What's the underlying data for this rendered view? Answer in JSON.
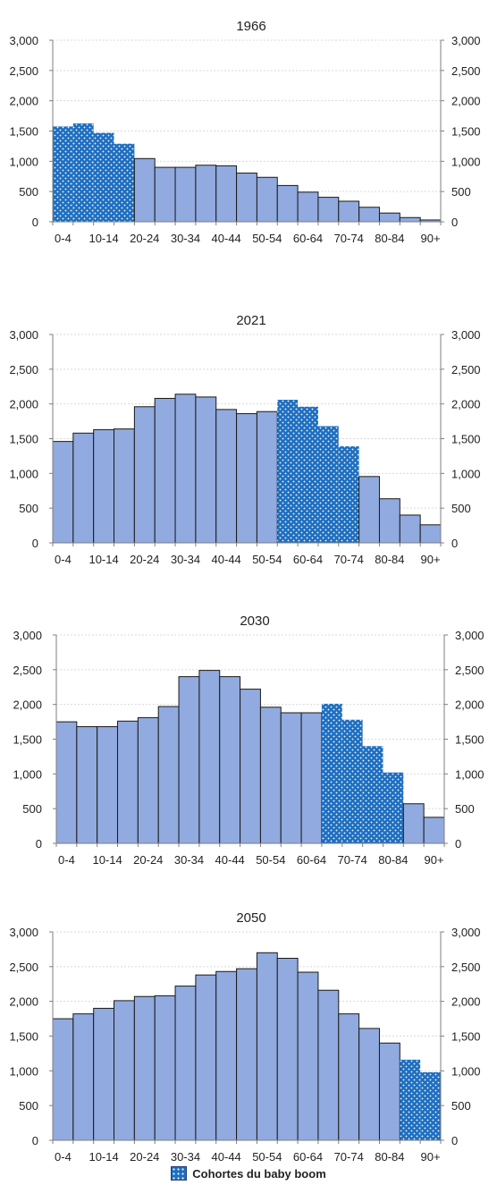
{
  "chart_data": [
    {
      "type": "bar",
      "title": "1966",
      "categories": [
        "0-4",
        "5-9",
        "10-14",
        "15-19",
        "20-24",
        "25-29",
        "30-34",
        "35-39",
        "40-44",
        "45-49",
        "50-54",
        "55-59",
        "60-64",
        "65-69",
        "70-74",
        "75-79",
        "80-84",
        "85-89",
        "90+"
      ],
      "values": [
        1575,
        1625,
        1470,
        1290,
        1045,
        900,
        900,
        935,
        925,
        805,
        735,
        600,
        490,
        405,
        340,
        240,
        145,
        70,
        30
      ],
      "baby_boom": [
        true,
        true,
        true,
        true,
        false,
        false,
        false,
        false,
        false,
        false,
        false,
        false,
        false,
        false,
        false,
        false,
        false,
        false,
        false
      ],
      "visible_x_labels": [
        "0-4",
        "10-14",
        "20-24",
        "30-34",
        "40-44",
        "50-54",
        "60-64",
        "70-74",
        "80-84",
        "90+"
      ],
      "y_ticks": [
        "0",
        "500",
        "1,000",
        "1,500",
        "2,000",
        "2,500",
        "3,000"
      ],
      "ylim": [
        0,
        3000
      ],
      "grid": true
    },
    {
      "type": "bar",
      "title": "2021",
      "categories": [
        "0-4",
        "5-9",
        "10-14",
        "15-19",
        "20-24",
        "25-29",
        "30-34",
        "35-39",
        "40-44",
        "45-49",
        "50-54",
        "55-59",
        "60-64",
        "65-69",
        "70-74",
        "75-79",
        "80-84",
        "85-89",
        "90+"
      ],
      "values": [
        1460,
        1580,
        1630,
        1640,
        1960,
        2080,
        2140,
        2100,
        1920,
        1860,
        1890,
        2060,
        1960,
        1680,
        1390,
        955,
        635,
        400,
        260
      ],
      "baby_boom": [
        false,
        false,
        false,
        false,
        false,
        false,
        false,
        false,
        false,
        false,
        false,
        true,
        true,
        true,
        true,
        false,
        false,
        false,
        false
      ],
      "visible_x_labels": [
        "0-4",
        "10-14",
        "20-24",
        "30-34",
        "40-44",
        "50-54",
        "60-64",
        "70-74",
        "80-84",
        "90+"
      ],
      "y_ticks": [
        "0",
        "500",
        "1,000",
        "1,500",
        "2,000",
        "2,500",
        "3,000"
      ],
      "ylim": [
        0,
        3000
      ],
      "grid": true
    },
    {
      "type": "bar",
      "title": "2030",
      "categories": [
        "0-4",
        "5-9",
        "10-14",
        "15-19",
        "20-24",
        "25-29",
        "30-34",
        "35-39",
        "40-44",
        "45-49",
        "50-54",
        "55-59",
        "60-64",
        "65-69",
        "70-74",
        "75-79",
        "80-84",
        "85-89",
        "90+"
      ],
      "values": [
        1750,
        1680,
        1680,
        1760,
        1810,
        1970,
        2400,
        2490,
        2400,
        2220,
        1960,
        1880,
        1880,
        2010,
        1780,
        1400,
        1020,
        570,
        375
      ],
      "baby_boom": [
        false,
        false,
        false,
        false,
        false,
        false,
        false,
        false,
        false,
        false,
        false,
        false,
        false,
        true,
        true,
        true,
        true,
        false,
        false
      ],
      "visible_x_labels": [
        "0-4",
        "10-14",
        "20-24",
        "30-34",
        "40-44",
        "50-54",
        "60-64",
        "70-74",
        "80-84",
        "90+"
      ],
      "y_ticks": [
        "0",
        "500",
        "1,000",
        "1,500",
        "2,000",
        "2,500",
        "3,000"
      ],
      "ylim": [
        0,
        3000
      ],
      "grid": true
    },
    {
      "type": "bar",
      "title": "2050",
      "categories": [
        "0-4",
        "5-9",
        "10-14",
        "15-19",
        "20-24",
        "25-29",
        "30-34",
        "35-39",
        "40-44",
        "45-49",
        "50-54",
        "55-59",
        "60-64",
        "65-69",
        "70-74",
        "75-79",
        "80-84",
        "85-89",
        "90+"
      ],
      "values": [
        1750,
        1820,
        1900,
        2010,
        2070,
        2080,
        2220,
        2380,
        2430,
        2470,
        2700,
        2620,
        2420,
        2160,
        1820,
        1610,
        1400,
        1160,
        980
      ],
      "baby_boom": [
        false,
        false,
        false,
        false,
        false,
        false,
        false,
        false,
        false,
        false,
        false,
        false,
        false,
        false,
        false,
        false,
        false,
        true,
        true
      ],
      "visible_x_labels": [
        "0-4",
        "10-14",
        "20-24",
        "30-34",
        "40-44",
        "50-54",
        "60-64",
        "70-74",
        "80-84",
        "90+"
      ],
      "y_ticks": [
        "0",
        "500",
        "1,000",
        "1,500",
        "2,000",
        "2,500",
        "3,000"
      ],
      "ylim": [
        0,
        3000
      ],
      "grid": true
    }
  ],
  "legend": {
    "label": "Cohortes du baby boom",
    "placement": "bottom-center"
  },
  "colors": {
    "bar_fill": "#91aadf",
    "boom_fill": "#1f6fc0",
    "boom_dot": "#ffffff",
    "bar_stroke": "#1a1a1a",
    "axis": "#7f7f7f",
    "grid": "#d9d9d9",
    "text": "#222222"
  }
}
